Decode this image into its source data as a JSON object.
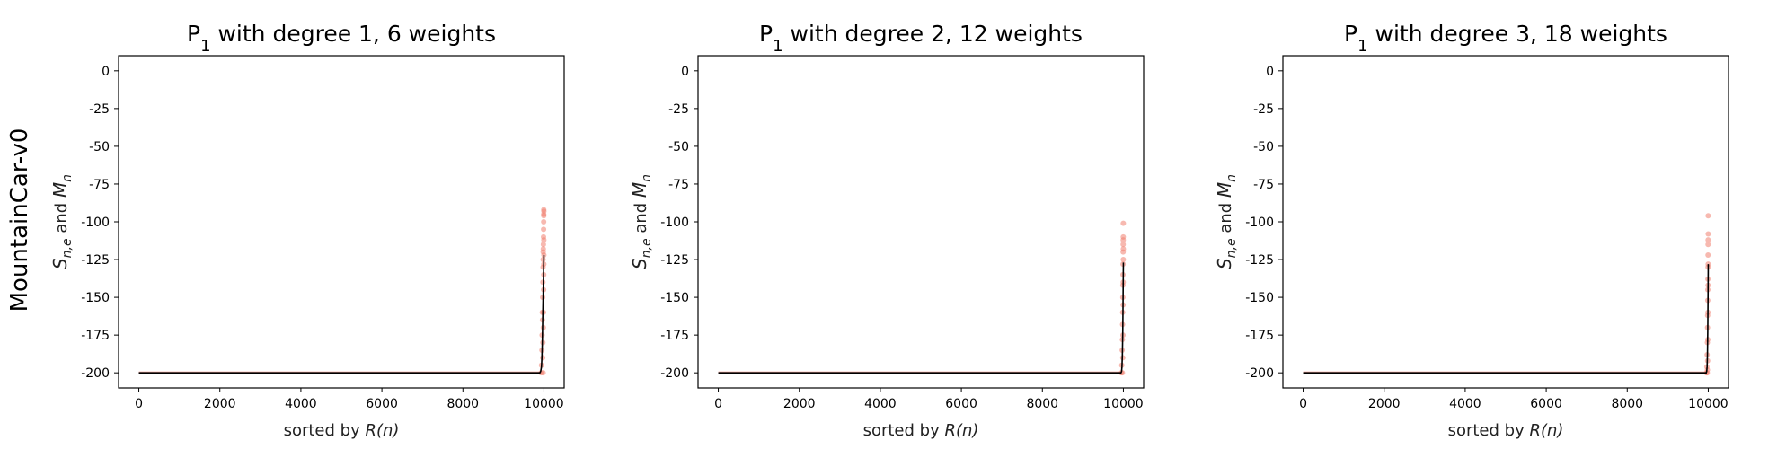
{
  "row_label": "MountainCar-v0",
  "colors": {
    "scatter": "#f08070",
    "line": "#000000",
    "axes": "#000000",
    "background": "#ffffff"
  },
  "chart_data": [
    {
      "type": "scatter",
      "title_main": "P",
      "title_sub": "1",
      "title_rest": " with degree 1, 6 weights",
      "xlabel_prefix": "sorted by ",
      "xlabel_math": "R(n)",
      "ylabel_s": "S",
      "ylabel_s_sub": "n,e",
      "ylabel_and": " and ",
      "ylabel_m": "M",
      "ylabel_m_sub": "n",
      "xlim": [
        -500,
        10500
      ],
      "ylim": [
        -210,
        10
      ],
      "xticks": [
        0,
        2000,
        4000,
        6000,
        8000,
        10000
      ],
      "yticks": [
        0,
        -25,
        -50,
        -75,
        -100,
        -125,
        -150,
        -175,
        -200
      ],
      "grid": false,
      "series": [
        {
          "kind": "scatter",
          "x": [
            9930,
            9940,
            9950,
            9955,
            9960,
            9965,
            9970,
            9975,
            9978,
            9980,
            9982,
            9985,
            9987,
            9990,
            9992,
            9994,
            9995,
            9996,
            9997,
            9998,
            9999,
            9975,
            9985,
            9990,
            9993,
            9996,
            9998,
            9999,
            9970,
            9980
          ],
          "y": [
            -200,
            -195,
            -185,
            -175,
            -160,
            -165,
            -150,
            -140,
            -130,
            -125,
            -120,
            -118,
            -115,
            -110,
            -105,
            -100,
            -95,
            -92,
            -96,
            -112,
            -93,
            -180,
            -170,
            -160,
            -145,
            -135,
            -128,
            -122,
            -190,
            -200
          ]
        },
        {
          "kind": "line",
          "x": [
            0,
            9900,
            9920,
            9940,
            9950,
            9960,
            9970,
            9980,
            9990,
            10000
          ],
          "y": [
            -200,
            -200,
            -199,
            -196,
            -190,
            -180,
            -165,
            -150,
            -135,
            -122
          ]
        }
      ]
    },
    {
      "type": "scatter",
      "title_main": "P",
      "title_sub": "1",
      "title_rest": " with degree 2, 12 weights",
      "xlabel_prefix": "sorted by ",
      "xlabel_math": "R(n)",
      "ylabel_s": "S",
      "ylabel_s_sub": "n,e",
      "ylabel_and": " and ",
      "ylabel_m": "M",
      "ylabel_m_sub": "n",
      "xlim": [
        -500,
        10500
      ],
      "ylim": [
        -210,
        10
      ],
      "xticks": [
        0,
        2000,
        4000,
        6000,
        8000,
        10000
      ],
      "yticks": [
        0,
        -25,
        -50,
        -75,
        -100,
        -125,
        -150,
        -175,
        -200
      ],
      "grid": false,
      "series": [
        {
          "kind": "scatter",
          "x": [
            9950,
            9960,
            9970,
            9975,
            9980,
            9983,
            9986,
            9988,
            9990,
            9992,
            9994,
            9995,
            9996,
            9997,
            9998,
            9999,
            9985,
            9990,
            9993,
            9996,
            9998,
            9975
          ],
          "y": [
            -200,
            -195,
            -185,
            -178,
            -168,
            -160,
            -150,
            -142,
            -135,
            -128,
            -120,
            -115,
            -112,
            -110,
            -101,
            -118,
            -190,
            -175,
            -155,
            -140,
            -125,
            -200
          ]
        },
        {
          "kind": "line",
          "x": [
            0,
            9940,
            9955,
            9965,
            9975,
            9985,
            9990,
            9995,
            10000
          ],
          "y": [
            -200,
            -200,
            -199,
            -196,
            -188,
            -172,
            -158,
            -142,
            -127
          ]
        }
      ]
    },
    {
      "type": "scatter",
      "title_main": "P",
      "title_sub": "1",
      "title_rest": " with degree 3, 18 weights",
      "xlabel_prefix": "sorted by ",
      "xlabel_math": "R(n)",
      "ylabel_s": "S",
      "ylabel_s_sub": "n,e",
      "ylabel_and": " and ",
      "ylabel_m": "M",
      "ylabel_m_sub": "n",
      "xlim": [
        -500,
        10500
      ],
      "ylim": [
        -210,
        10
      ],
      "xticks": [
        0,
        2000,
        4000,
        6000,
        8000,
        10000
      ],
      "yticks": [
        0,
        -25,
        -50,
        -75,
        -100,
        -125,
        -150,
        -175,
        -200
      ],
      "grid": false,
      "series": [
        {
          "kind": "scatter",
          "x": [
            9955,
            9965,
            9972,
            9978,
            9982,
            9985,
            9988,
            9990,
            9992,
            9994,
            9995,
            9996,
            9997,
            9998,
            9999,
            9985,
            9990,
            9993,
            9996,
            9998,
            9975,
            9980
          ],
          "y": [
            -200,
            -196,
            -188,
            -180,
            -170,
            -162,
            -152,
            -145,
            -138,
            -130,
            -122,
            -115,
            -112,
            -96,
            -108,
            -192,
            -178,
            -160,
            -142,
            -128,
            -200,
            -198
          ]
        },
        {
          "kind": "line",
          "x": [
            0,
            9950,
            9962,
            9972,
            9980,
            9988,
            9993,
            9997,
            10000
          ],
          "y": [
            -200,
            -200,
            -199,
            -196,
            -188,
            -172,
            -155,
            -140,
            -128
          ]
        }
      ]
    }
  ]
}
